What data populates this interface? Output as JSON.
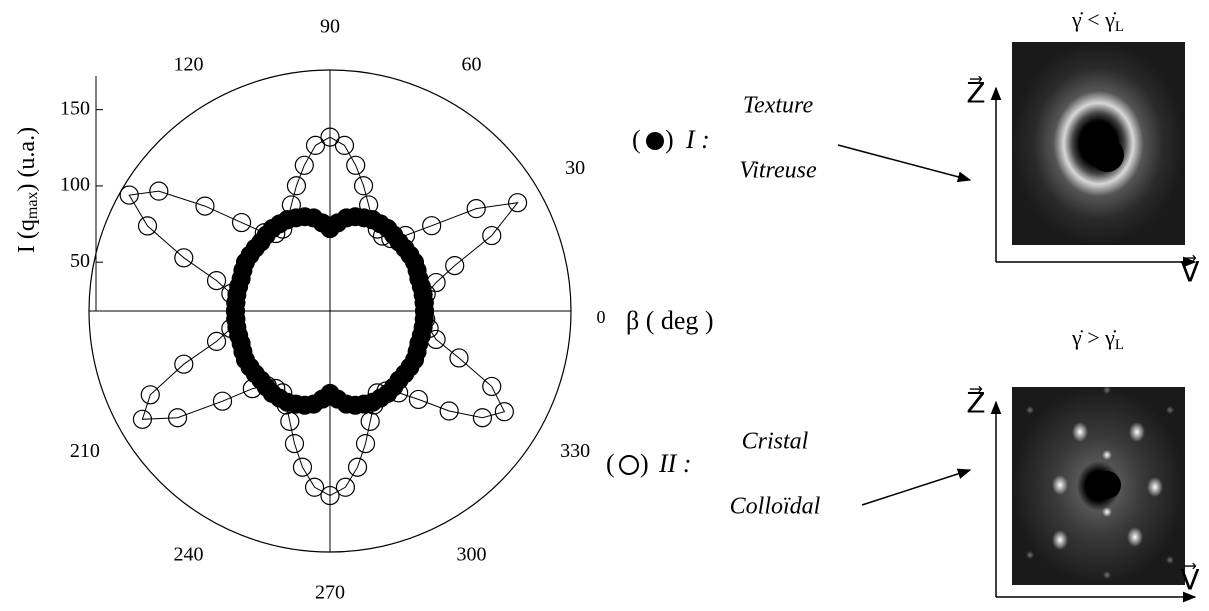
{
  "chart_data": {
    "type": "polar",
    "ylabel_parts": [
      "I (q",
      "max",
      ") (u.a.)"
    ],
    "xlabel": "β ( deg )",
    "rlim": [
      18,
      176
    ],
    "rticks": [
      50,
      100,
      150
    ],
    "theta_ticks": [
      0,
      30,
      60,
      90,
      120,
      150,
      180,
      210,
      240,
      270,
      300,
      330
    ],
    "theta_tick_labels_shown": [
      0,
      30,
      60,
      90,
      120,
      210,
      240,
      270,
      300,
      330
    ],
    "theta": [
      0,
      5,
      10,
      15,
      20,
      25,
      30,
      35,
      40,
      45,
      50,
      55,
      60,
      65,
      70,
      75,
      80,
      85,
      90,
      95,
      100,
      105,
      110,
      115,
      120,
      125,
      130,
      135,
      140,
      145,
      150,
      155,
      160,
      165,
      170,
      175,
      180,
      185,
      190,
      195,
      200,
      205,
      210,
      215,
      220,
      225,
      230,
      235,
      240,
      245,
      250,
      255,
      260,
      265,
      270,
      275,
      280,
      285,
      290,
      295,
      300,
      305,
      310,
      315,
      320,
      325,
      330,
      335,
      340,
      345,
      350,
      355
    ],
    "legend_brackets": [
      "(",
      ")"
    ],
    "series": [
      {
        "name": "I :",
        "label": [
          "Texture",
          "Vitreuse"
        ],
        "marker": "filled",
        "color": "#000000",
        "values": [
          80,
          80,
          80,
          80,
          80,
          81,
          82,
          82,
          82,
          82,
          83,
          84,
          84,
          84,
          83,
          82,
          80,
          76,
          72,
          76,
          80,
          82,
          83,
          84,
          84,
          84,
          83,
          82,
          82,
          82,
          82,
          81,
          80,
          80,
          80,
          80,
          80,
          80,
          80,
          80,
          80,
          81,
          82,
          82,
          82,
          82,
          83,
          84,
          84,
          84,
          83,
          82,
          80,
          76,
          72,
          76,
          80,
          82,
          83,
          84,
          84,
          84,
          83,
          82,
          82,
          82,
          82,
          81,
          80,
          80,
          80,
          80
        ]
      },
      {
        "name": "II :",
        "label": [
          "Cristal",
          "Colloïdal"
        ],
        "marker": "open",
        "color": "#000000",
        "values": [
          80,
          80,
          82,
          90,
          105,
          135,
          160,
          135,
          105,
          88,
          80,
          78,
          80,
          84,
          92,
          103,
          115,
          127,
          132,
          127,
          115,
          103,
          92,
          84,
          80,
          80,
          85,
          100,
          125,
          155,
          170,
          150,
          120,
          95,
          84,
          80,
          80,
          80,
          84,
          95,
          120,
          148,
          160,
          140,
          110,
          90,
          82,
          80,
          80,
          86,
          95,
          108,
          122,
          134,
          139,
          134,
          122,
          108,
          95,
          86,
          80,
          82,
          88,
          100,
          120,
          140,
          150,
          135,
          108,
          90,
          84,
          81
        ]
      }
    ],
    "panels": [
      {
        "title_parts": [
          "γ̇ < γ̇",
          "L"
        ],
        "z": "Z⃗",
        "v": "V⃗"
      },
      {
        "title_parts": [
          "γ̇ > γ̇",
          "L"
        ],
        "z": "Z⃗",
        "v": "V⃗"
      }
    ]
  }
}
